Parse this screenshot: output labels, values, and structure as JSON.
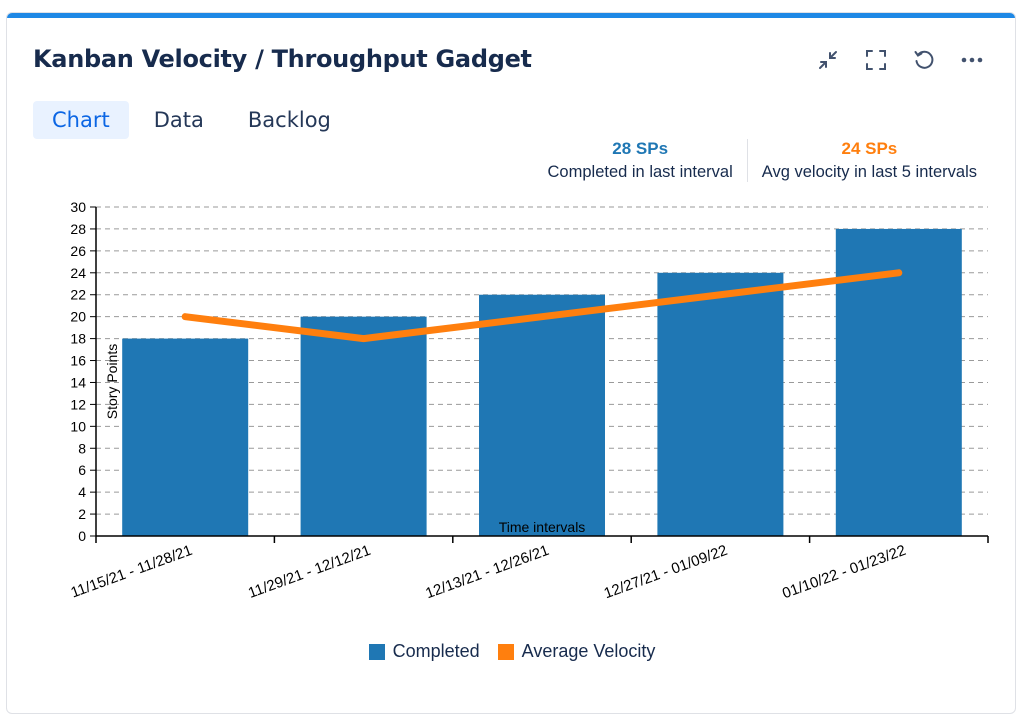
{
  "gadget": {
    "title": "Kanban Velocity / Throughput Gadget",
    "actions": [
      {
        "name": "minimize-icon"
      },
      {
        "name": "fullscreen-icon"
      },
      {
        "name": "refresh-icon"
      },
      {
        "name": "more-icon"
      }
    ]
  },
  "tabs": [
    {
      "label": "Chart",
      "active": true
    },
    {
      "label": "Data",
      "active": false
    },
    {
      "label": "Backlog",
      "active": false
    }
  ],
  "stats": {
    "completed_value": "28 SPs",
    "completed_label": "Completed in last interval",
    "avg_value": "24 SPs",
    "avg_label": "Avg velocity in last 5 intervals"
  },
  "colors": {
    "completed": "#1f77b4",
    "average": "#ff7f0e",
    "accent": "#1e88e5"
  },
  "chart_data": {
    "type": "bar",
    "categories": [
      "11/15/21 - 11/28/21",
      "11/29/21 - 12/12/21",
      "12/13/21 - 12/26/21",
      "12/27/21 - 01/09/22",
      "01/10/22 - 01/23/22"
    ],
    "series": [
      {
        "name": "Completed",
        "type": "bar",
        "values": [
          18,
          20,
          22,
          24,
          28
        ]
      },
      {
        "name": "Average Velocity",
        "type": "line",
        "values": [
          20,
          18,
          20,
          22,
          24
        ]
      }
    ],
    "xlabel": "Time intervals",
    "ylabel": "Story Points",
    "ylim": [
      0,
      30
    ],
    "yticks": [
      0,
      2,
      4,
      6,
      8,
      10,
      12,
      14,
      16,
      18,
      20,
      22,
      24,
      26,
      28,
      30
    ],
    "grid": true,
    "legend_position": "bottom"
  }
}
